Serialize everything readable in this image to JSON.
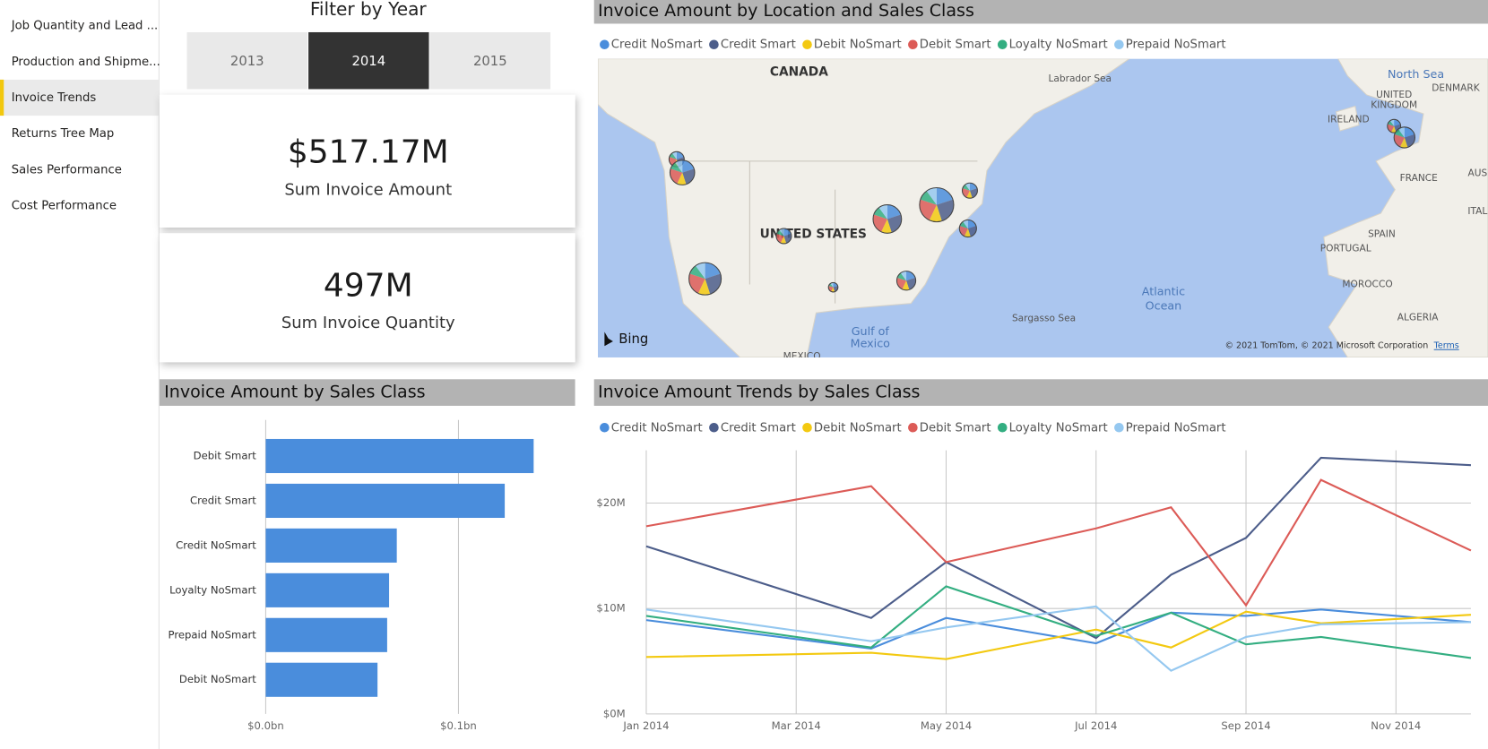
{
  "nav": {
    "items": [
      "Job Quantity and Lead ...",
      "Production and Shipme...",
      "Invoice Trends",
      "Returns Tree Map",
      "Sales Performance",
      "Cost Performance"
    ],
    "active": 2
  },
  "filter": {
    "title": "Filter by Year",
    "options": [
      "2013",
      "2014",
      "2015"
    ],
    "selected": 1
  },
  "cards": [
    {
      "value": "$517.17M",
      "label": "Sum Invoice Amount"
    },
    {
      "value": "497M",
      "label": "Sum Invoice Quantity"
    }
  ],
  "chart_data": [
    {
      "type": "map",
      "title": "Invoice Amount by Location and Sales Class",
      "series": [
        {
          "name": "Credit NoSmart",
          "color": "#4a8ddc"
        },
        {
          "name": "Credit Smart",
          "color": "#4c5d8a"
        },
        {
          "name": "Debit NoSmart",
          "color": "#f3c911"
        },
        {
          "name": "Debit Smart",
          "color": "#dc5b57"
        },
        {
          "name": "Loyalty NoSmart",
          "color": "#33ae81"
        },
        {
          "name": "Prepaid NoSmart",
          "color": "#95c8f0"
        }
      ],
      "labels": [
        "CANADA",
        "Labrador Sea",
        "North Sea",
        "UNITED",
        "KINGDOM",
        "DENMARK",
        "IRELAND",
        "FRANCE",
        "AUS",
        "ITAL",
        "SPAIN",
        "PORTUGAL",
        "MOROCCO",
        "ALGERIA",
        "UNITED STATES",
        "Atlantic",
        "Ocean",
        "Sargasso Sea",
        "Gulf of",
        "Mexico",
        "MEXICO"
      ],
      "provider": "Bing",
      "attribution": "© 2021 TomTom, © 2021 Microsoft Corporation",
      "terms": "Terms"
    },
    {
      "type": "bar",
      "orientation": "horizontal",
      "title": "Invoice Amount by Sales Class",
      "categories": [
        "Debit Smart",
        "Credit Smart",
        "Credit NoSmart",
        "Loyalty NoSmart",
        "Prepaid NoSmart",
        "Debit NoSmart"
      ],
      "values": [
        0.139,
        0.124,
        0.068,
        0.064,
        0.063,
        0.058
      ],
      "color": "#4a8ddc",
      "xlim": [
        0,
        0.16
      ],
      "xticks": [
        {
          "value": 0,
          "label": "$0.0bn"
        },
        {
          "value": 0.1,
          "label": "$0.1bn"
        }
      ],
      "grid": true
    },
    {
      "type": "line",
      "title": "Invoice Amount Trends by Sales Class",
      "x": [
        "Jan 2014",
        "Apr 2014",
        "May 2014",
        "Jul 2014",
        "Aug 2014",
        "Sep 2014",
        "Oct 2014",
        "Dec 2014"
      ],
      "xlim": [
        "Jan 2014",
        "Dec 2014"
      ],
      "xticks": [
        "Jan 2014",
        "Mar 2014",
        "May 2014",
        "Jul 2014",
        "Sep 2014",
        "Nov 2014"
      ],
      "ylim": [
        0,
        25
      ],
      "yticks": [
        {
          "value": 0,
          "label": "$0M"
        },
        {
          "value": 10,
          "label": "$10M"
        },
        {
          "value": 20,
          "label": "$20M"
        }
      ],
      "grid": true,
      "series": [
        {
          "name": "Credit NoSmart",
          "color": "#4a8ddc",
          "values": [
            8.9,
            6.2,
            9.1,
            6.7,
            9.6,
            9.3,
            9.9,
            8.7
          ]
        },
        {
          "name": "Credit Smart",
          "color": "#4c5d8a",
          "values": [
            15.9,
            9.1,
            14.4,
            7.2,
            13.2,
            16.7,
            24.3,
            23.6
          ]
        },
        {
          "name": "Debit NoSmart",
          "color": "#f3c911",
          "values": [
            5.4,
            5.8,
            5.2,
            8.0,
            6.3,
            9.7,
            8.6,
            9.4
          ]
        },
        {
          "name": "Debit Smart",
          "color": "#dc5b57",
          "values": [
            17.8,
            21.6,
            14.4,
            17.6,
            19.6,
            10.3,
            22.2,
            15.5
          ]
        },
        {
          "name": "Loyalty NoSmart",
          "color": "#33ae81",
          "values": [
            9.3,
            6.3,
            12.1,
            7.4,
            9.6,
            6.6,
            7.3,
            5.3
          ]
        },
        {
          "name": "Prepaid NoSmart",
          "color": "#95c8f0",
          "values": [
            9.9,
            6.9,
            8.2,
            10.2,
            4.1,
            7.3,
            8.5,
            8.7
          ]
        }
      ]
    }
  ]
}
